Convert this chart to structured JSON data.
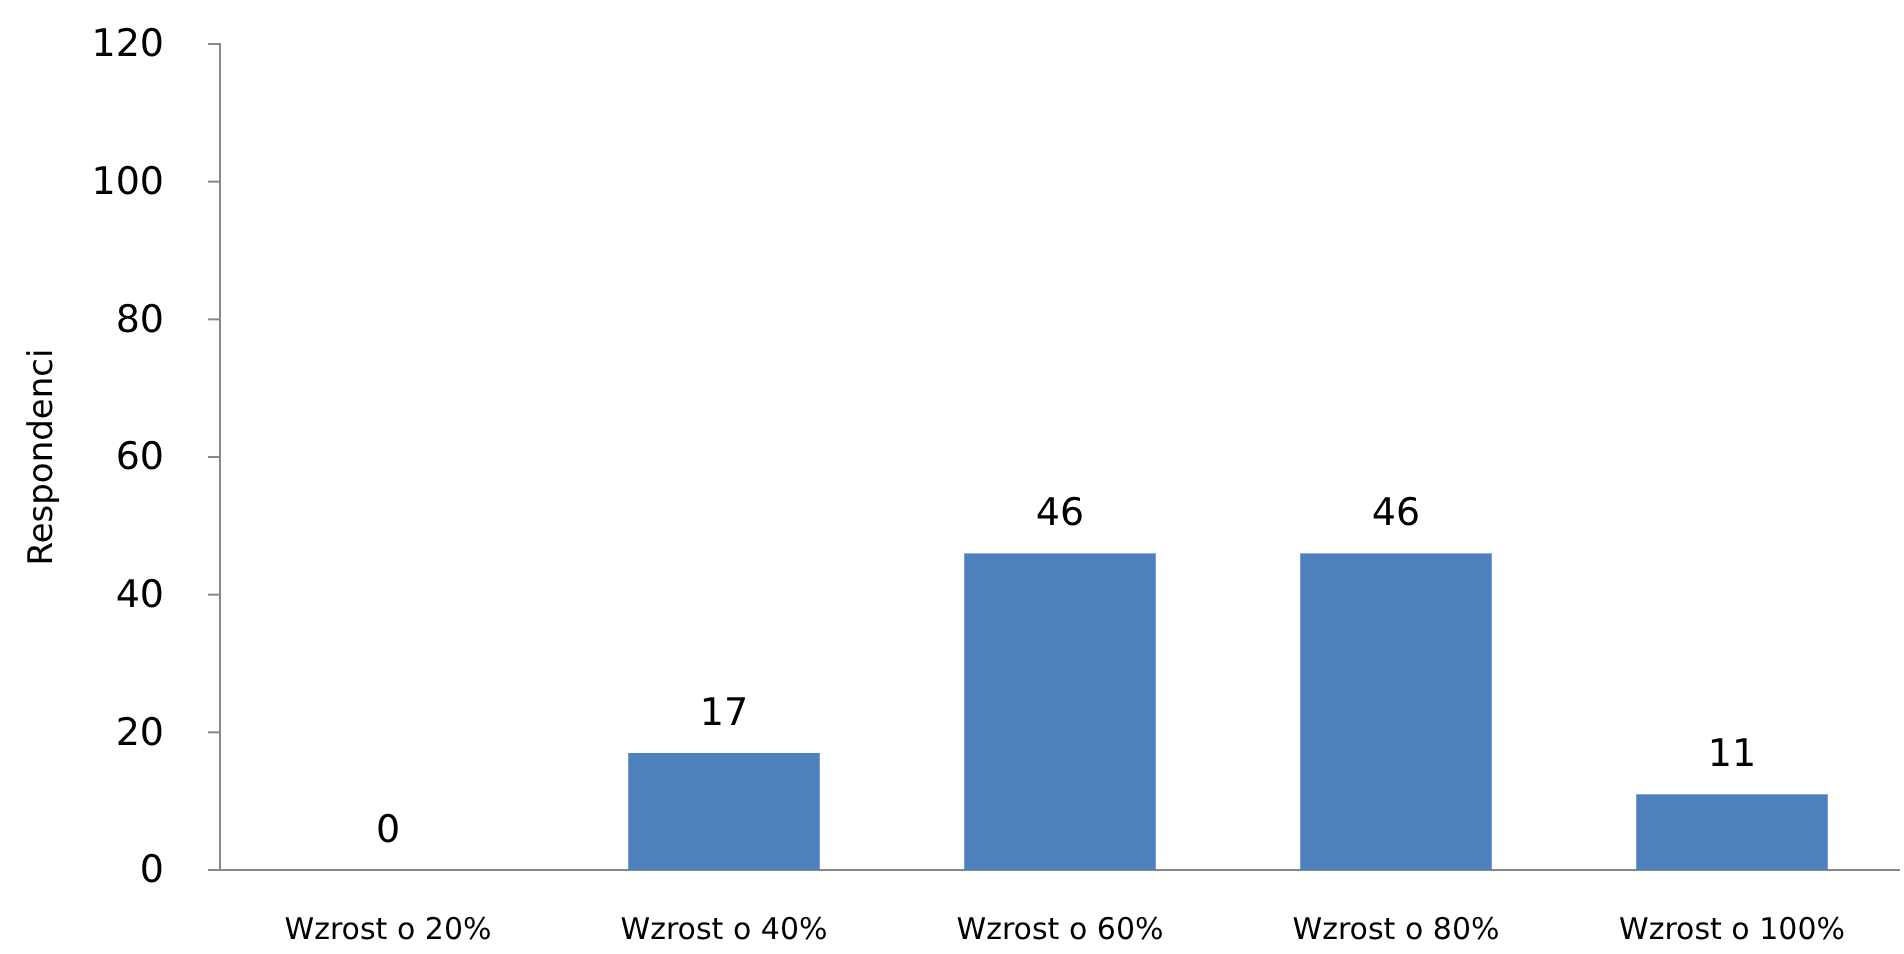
{
  "chart_data": {
    "type": "bar",
    "ylabel": "Respondenci",
    "categories": [
      "Wzrost o 20%",
      "Wzrost o 40%",
      "Wzrost o 60%",
      "Wzrost o 80%",
      "Wzrost o 100%"
    ],
    "values": [
      0,
      17,
      46,
      46,
      11
    ],
    "color": "#4f81bd",
    "ylim": [
      0,
      120
    ],
    "yticks": [
      0,
      20,
      40,
      60,
      80,
      100,
      120
    ],
    "data_labels": true
  }
}
